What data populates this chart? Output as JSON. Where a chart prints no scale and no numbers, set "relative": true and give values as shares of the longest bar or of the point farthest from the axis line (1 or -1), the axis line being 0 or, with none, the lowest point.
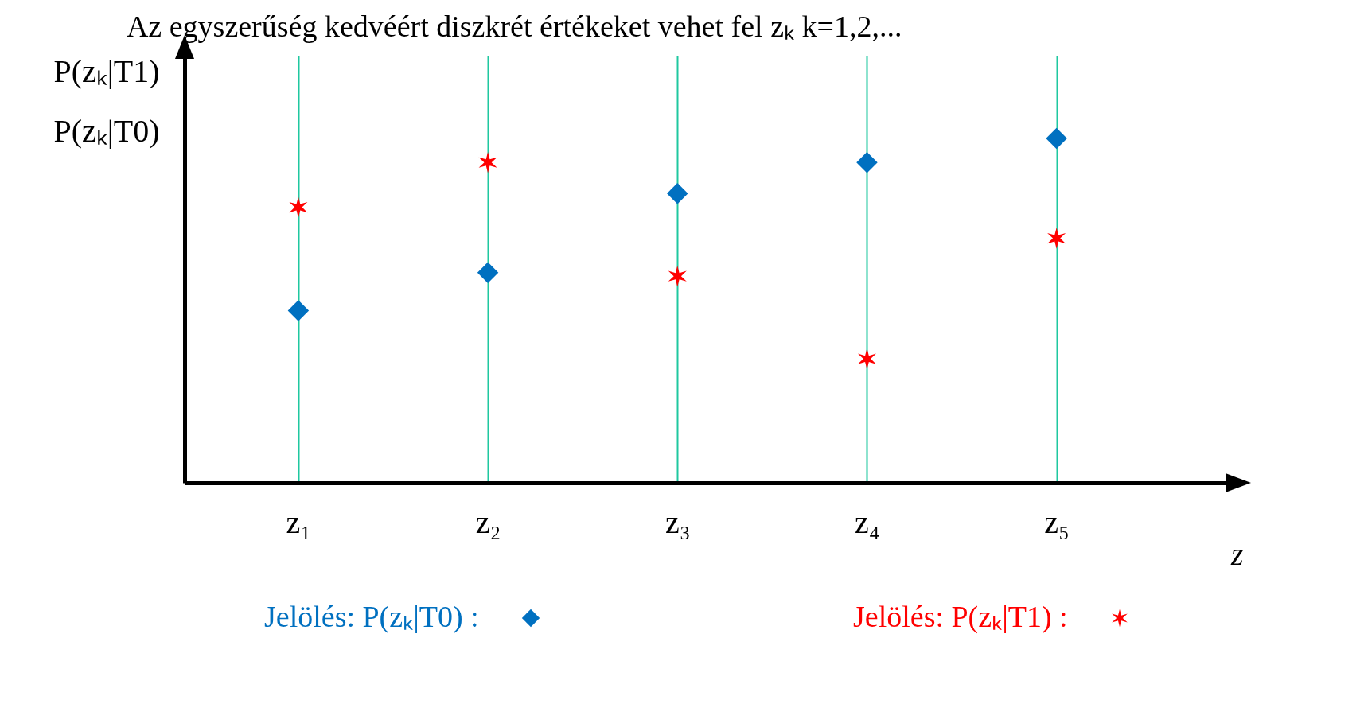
{
  "chart_data": {
    "type": "scatter",
    "title": "Az egyszerűség kedvéért diszkrét értékeket vehet fel zₖ  k=1,2,...",
    "ylabel": "P(zₖ|T1)\nP(zₖ|T0)",
    "xlabel": "z",
    "categories": [
      "z₁",
      "z₂",
      "z₃",
      "z₄",
      "z₅"
    ],
    "relative": true,
    "grid": "x",
    "legend": "bottom",
    "series": [
      {
        "name": "Jelölés: P(zₖ|T0) :",
        "color": "#0070c0",
        "marker": "diamond",
        "values": [
          0.5,
          0.61,
          0.84,
          0.93,
          1.0
        ]
      },
      {
        "name": "Jelölés: P(zₖ|T1) :",
        "color": "#ff0000",
        "marker": "cross",
        "values": [
          0.8,
          0.93,
          0.6,
          0.36,
          0.71
        ]
      }
    ]
  }
}
